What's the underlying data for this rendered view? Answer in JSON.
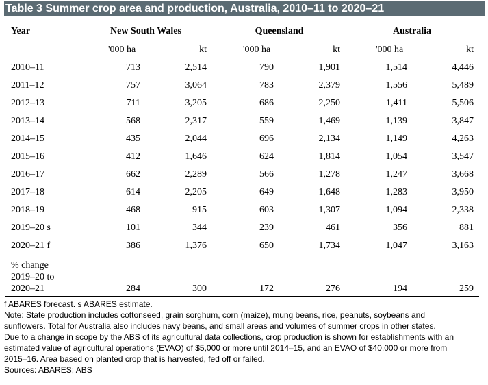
{
  "title": "Table 3 Summer crop area and production, Australia, 2010–11 to 2020–21",
  "header": {
    "year": "Year",
    "regions": [
      "New South Wales",
      "Queensland",
      "Australia"
    ],
    "units": [
      "'000 ha",
      "kt",
      "'000 ha",
      "kt",
      "'000 ha",
      "kt"
    ]
  },
  "rows": [
    {
      "year": "2010–11",
      "values": [
        "713",
        "2,514",
        "790",
        "1,901",
        "1,514",
        "4,446"
      ]
    },
    {
      "year": "2011–12",
      "values": [
        "757",
        "3,064",
        "783",
        "2,379",
        "1,556",
        "5,489"
      ]
    },
    {
      "year": "2012–13",
      "values": [
        "711",
        "3,205",
        "686",
        "2,250",
        "1,411",
        "5,506"
      ]
    },
    {
      "year": "2013–14",
      "values": [
        "568",
        "2,317",
        "559",
        "1,469",
        "1,139",
        "3,847"
      ]
    },
    {
      "year": "2014–15",
      "values": [
        "435",
        "2,044",
        "696",
        "2,134",
        "1,149",
        "4,263"
      ]
    },
    {
      "year": "2015–16",
      "values": [
        "412",
        "1,646",
        "624",
        "1,814",
        "1,054",
        "3,547"
      ]
    },
    {
      "year": "2016–17",
      "values": [
        "662",
        "2,289",
        "566",
        "1,278",
        "1,247",
        "3,668"
      ]
    },
    {
      "year": "2017–18",
      "values": [
        "614",
        "2,205",
        "649",
        "1,648",
        "1,283",
        "3,950"
      ]
    },
    {
      "year": "2018–19",
      "values": [
        "468",
        "915",
        "603",
        "1,307",
        "1,094",
        "2,338"
      ]
    },
    {
      "year": "2019–20 s",
      "values": [
        "101",
        "344",
        "239",
        "461",
        "356",
        "881"
      ]
    },
    {
      "year": "2020–21 f",
      "values": [
        "386",
        "1,376",
        "650",
        "1,734",
        "1,047",
        "3,163"
      ]
    }
  ],
  "change_row": {
    "label_lines": [
      "% change",
      "2019–20 to",
      "2020–21"
    ],
    "values": [
      "284",
      "300",
      "172",
      "276",
      "194",
      "259"
    ]
  },
  "notes": [
    "f ABARES forecast. s ABARES estimate.",
    "Note: State production includes cottonseed, grain sorghum, corn (maize), mung beans, rice, peanuts, soybeans and",
    "sunflowers. Total for Australia also includes navy beans, and small areas and volumes of summer crops in other states.",
    "Due to a change in scope by the ABS of its agricultural data collections, crop production is shown for establishments with an",
    "estimated value of agricultural operations (EVAO) of $5,000 or more until 2014–15, and an EVAO of $40,000 or more from",
    "2015–16. Area based on planted crop that is harvested, fed off or failed.",
    "Sources: ABARES; ABS"
  ]
}
